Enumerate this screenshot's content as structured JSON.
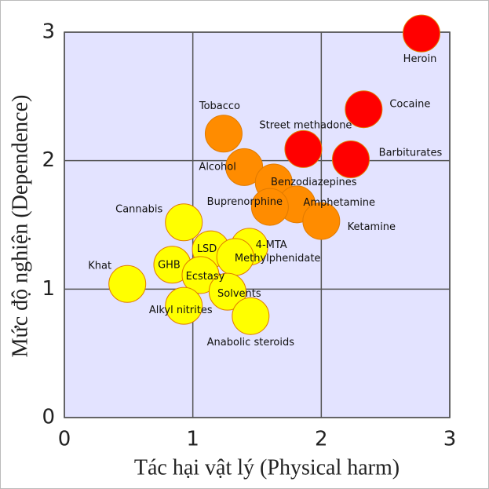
{
  "chart_data": {
    "type": "scatter",
    "xlabel": "Tác hại vật lý (Physical harm)",
    "ylabel": "Mức độ nghiện (Dependence)",
    "labels": [
      "Heroin",
      "Cocaine",
      "Street methadone",
      "Barbiturates",
      "Tobacco",
      "Alcohol",
      "Benzodiazepines",
      "Amphetamine",
      "Buprenorphine",
      "Ketamine",
      "Cannabis",
      "4-MTA",
      "LSD",
      "Methylphenidate",
      "GHB",
      "Ecstasy",
      "Khat",
      "Solvents",
      "Alkyl nitrites",
      "Anabolic steroids"
    ],
    "x": [
      2.78,
      2.33,
      1.86,
      2.23,
      1.24,
      1.4,
      1.63,
      1.81,
      1.6,
      2.0,
      0.93,
      1.44,
      1.14,
      1.33,
      0.84,
      1.06,
      0.49,
      1.27,
      0.93,
      1.45
    ],
    "values": [
      2.99,
      2.4,
      2.09,
      2.01,
      2.21,
      1.95,
      1.83,
      1.66,
      1.64,
      1.53,
      1.52,
      1.33,
      1.31,
      1.25,
      1.19,
      1.11,
      1.04,
      0.98,
      0.87,
      0.79
    ],
    "colors": [
      "#ff0000",
      "#ff0000",
      "#ff0000",
      "#ff0000",
      "#ff8c00",
      "#ff8c00",
      "#ff8c00",
      "#ff8c00",
      "#ff8c00",
      "#ff8c00",
      "#ffff00",
      "#ffff00",
      "#ffff00",
      "#ffff00",
      "#ffff00",
      "#ffff00",
      "#ffff00",
      "#ffff00",
      "#ffff00",
      "#ffff00"
    ],
    "xlim": [
      0,
      3
    ],
    "ylim": [
      0,
      3
    ],
    "xticks": [
      0,
      1,
      2,
      3
    ],
    "yticks": [
      0,
      1,
      2,
      3
    ],
    "grid": true
  }
}
